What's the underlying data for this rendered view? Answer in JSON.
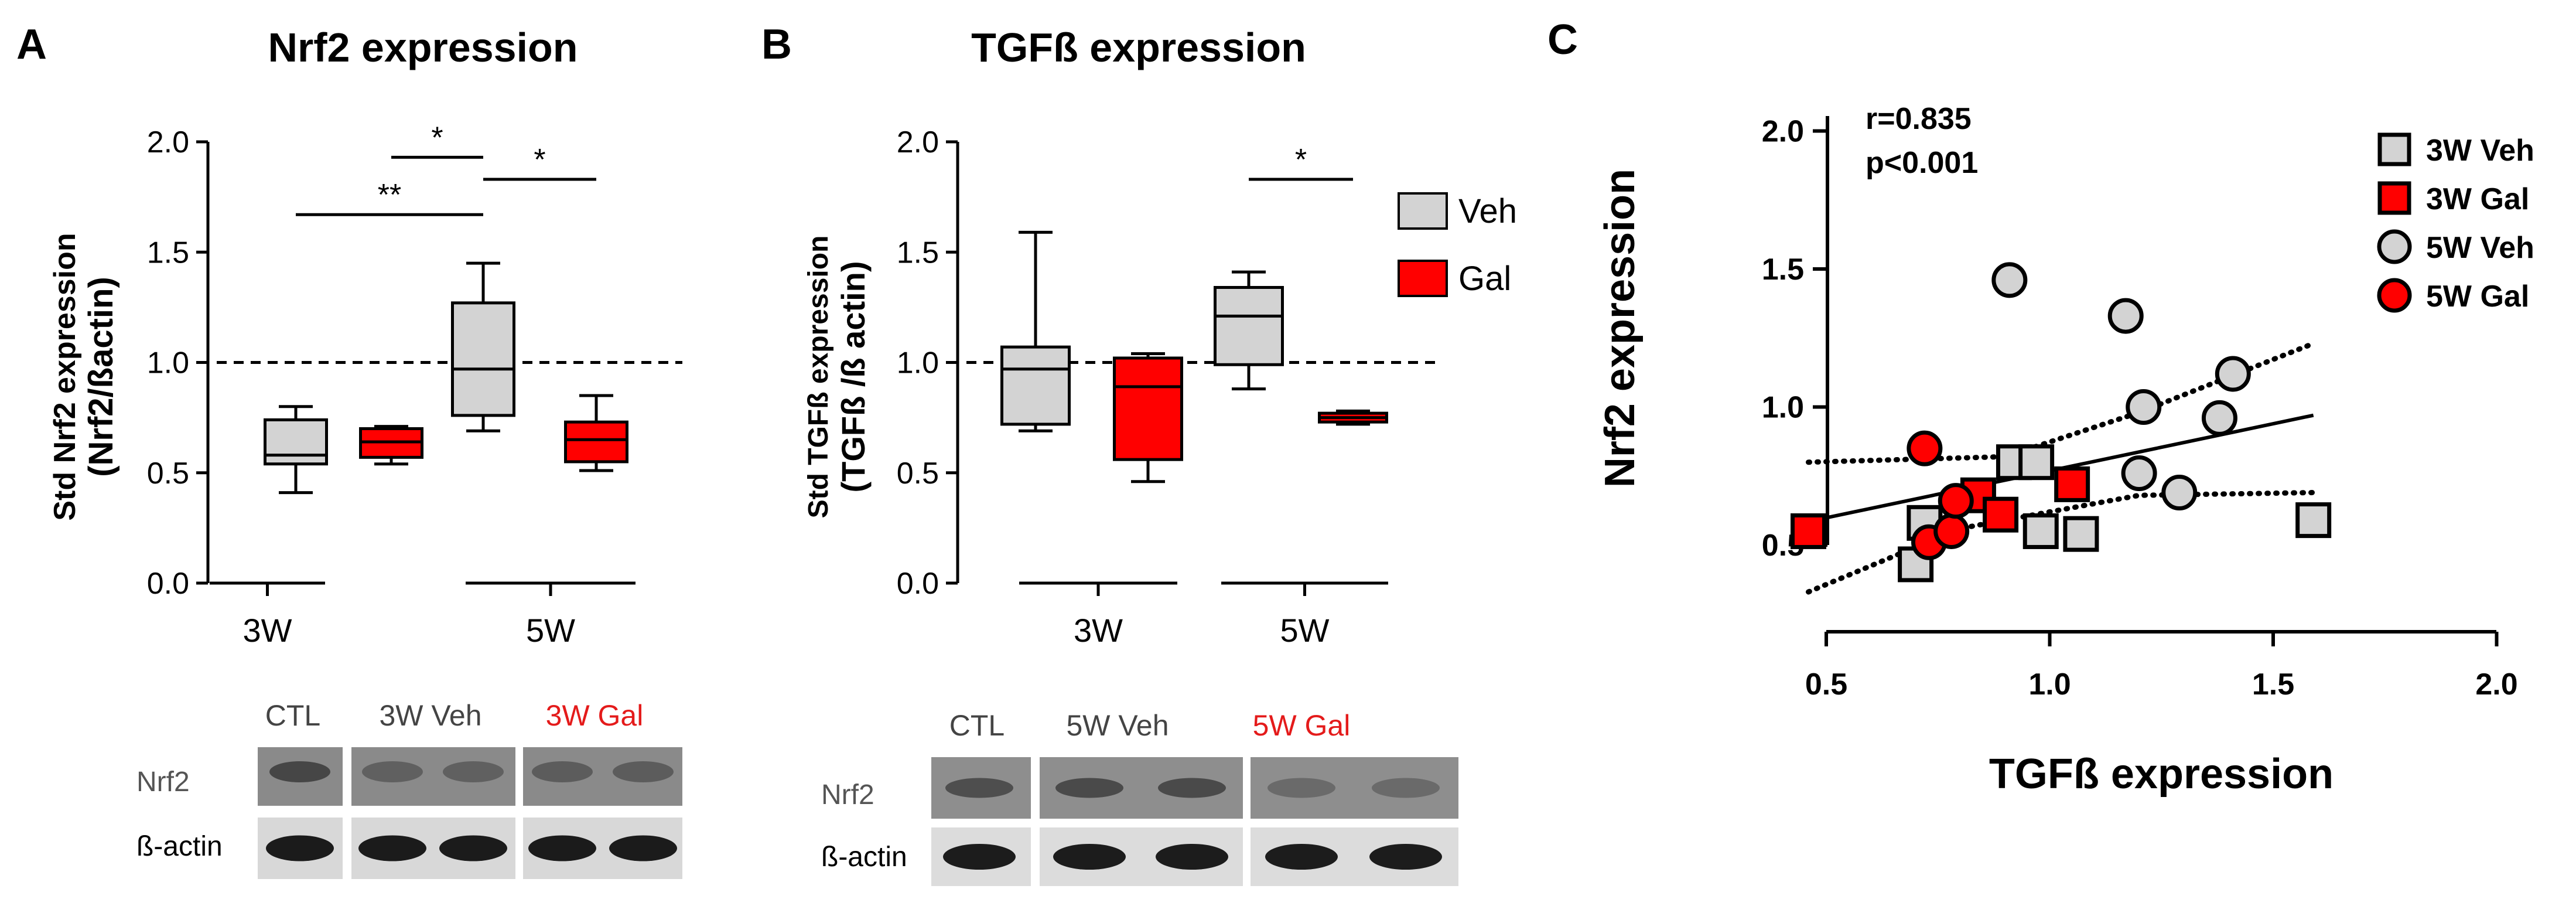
{
  "panels": {
    "A": {
      "letter": "A",
      "title": "Nrf2 expression",
      "ylabel_line1": "Std Nrf2  expression",
      "ylabel_line2": "(Nrf2/ßactin)"
    },
    "B": {
      "letter": "B",
      "title": "TGFß expression",
      "ylabel_line1": "Std TGFß  expression",
      "ylabel_line2": "(TGFß /ß actin)"
    },
    "C": {
      "letter": "C"
    }
  },
  "colors": {
    "veh": "#d3d3d3",
    "gal": "#ff0000",
    "black": "#000000",
    "blot_bg": "#707070"
  },
  "blot_A": {
    "lane_labels": [
      "CTL",
      "3W Veh",
      "3W Gal"
    ],
    "lane_colors": [
      "#444444",
      "#444444",
      "#e41b1b"
    ],
    "rows": [
      "Nrf2",
      "ß-actin"
    ]
  },
  "blot_B": {
    "lane_labels": [
      "CTL",
      "5W Veh",
      "5W Gal"
    ],
    "lane_colors": [
      "#444444",
      "#444444",
      "#e41b1b"
    ],
    "rows": [
      "Nrf2",
      "ß-actin"
    ]
  },
  "chart_data": [
    {
      "panel": "A",
      "type": "box",
      "title": "Nrf2 expression",
      "ylabel": "Std Nrf2  expression (Nrf2/ßactin)",
      "ylim": [
        0,
        2.0
      ],
      "yticks": [
        "0.0",
        "0.5",
        "1.0",
        "1.5",
        "2.0"
      ],
      "categories": [
        "3W",
        "5W"
      ],
      "reference_line": 1.0,
      "series": [
        {
          "name": "Veh",
          "boxes": [
            {
              "min": 0.41,
              "q1": 0.54,
              "median": 0.58,
              "q3": 0.74,
              "max": 0.8
            },
            {
              "min": 0.69,
              "q1": 0.76,
              "median": 0.97,
              "q3": 1.27,
              "max": 1.45
            }
          ]
        },
        {
          "name": "Gal",
          "boxes": [
            {
              "min": 0.54,
              "q1": 0.57,
              "median": 0.64,
              "q3": 0.7,
              "max": 0.71
            },
            {
              "min": 0.51,
              "q1": 0.55,
              "median": 0.65,
              "q3": 0.73,
              "max": 0.85
            }
          ]
        }
      ],
      "significance": [
        {
          "label": "**",
          "from": "3W Veh",
          "to": "5W Veh",
          "y": 1.67
        },
        {
          "label": "*",
          "from": "3W Gal",
          "to": "5W Veh",
          "y": 1.93
        },
        {
          "label": "*",
          "from": "5W Veh",
          "to": "5W Gal",
          "y": 1.83
        }
      ]
    },
    {
      "panel": "B",
      "type": "box",
      "title": "TGFß expression",
      "ylabel": "Std TGFß  expression (TGFß /ß actin)",
      "ylim": [
        0,
        2.0
      ],
      "yticks": [
        "0.0",
        "0.5",
        "1.0",
        "1.5",
        "2.0"
      ],
      "categories": [
        "3W",
        "5W"
      ],
      "reference_line": 1.0,
      "legend": [
        "Veh",
        "Gal"
      ],
      "series": [
        {
          "name": "Veh",
          "boxes": [
            {
              "min": 0.69,
              "q1": 0.72,
              "median": 0.97,
              "q3": 1.07,
              "max": 1.59
            },
            {
              "min": 0.88,
              "q1": 0.99,
              "median": 1.21,
              "q3": 1.34,
              "max": 1.41
            }
          ]
        },
        {
          "name": "Gal",
          "boxes": [
            {
              "min": 0.46,
              "q1": 0.56,
              "median": 0.89,
              "q3": 1.02,
              "max": 1.04
            },
            {
              "min": 0.72,
              "q1": 0.73,
              "median": 0.75,
              "q3": 0.77,
              "max": 0.78
            }
          ]
        }
      ],
      "significance": [
        {
          "label": "*",
          "from": "5W Veh",
          "to": "5W Gal",
          "y": 1.83
        }
      ]
    },
    {
      "panel": "C",
      "type": "scatter",
      "xlabel": "TGFß expression",
      "ylabel": "Nrf2 expression",
      "xlim": [
        0.5,
        2.0
      ],
      "ylim": [
        0.5,
        2.0
      ],
      "xticks": [
        "0.5",
        "1.0",
        "1.5",
        "2.0"
      ],
      "yticks": [
        "0.5",
        "1.0",
        "1.5",
        "2.0"
      ],
      "annotation": [
        "r=0.835",
        "p<0.001"
      ],
      "series": [
        {
          "name": "3W Veh",
          "marker": "square",
          "color": "#d3d3d3",
          "x": [
            0.7,
            0.72,
            0.92,
            0.97,
            0.98,
            1.07,
            1.59
          ],
          "y": [
            0.43,
            0.58,
            0.8,
            0.8,
            0.55,
            0.54,
            0.59
          ]
        },
        {
          "name": "3W Gal",
          "marker": "square",
          "color": "#ff0000",
          "x": [
            0.46,
            0.84,
            0.89,
            1.05
          ],
          "y": [
            0.55,
            0.68,
            0.61,
            0.72
          ]
        },
        {
          "name": "5W Veh",
          "marker": "circle",
          "color": "#d3d3d3",
          "x": [
            0.91,
            1.17,
            1.21,
            1.2,
            1.29,
            1.38,
            1.41
          ],
          "y": [
            1.46,
            1.33,
            1.0,
            0.76,
            0.69,
            0.96,
            1.12
          ]
        },
        {
          "name": "5W Gal",
          "marker": "circle",
          "color": "#ff0000",
          "x": [
            0.72,
            0.73,
            0.78,
            0.79
          ],
          "y": [
            0.85,
            0.51,
            0.55,
            0.66
          ]
        }
      ],
      "fit": {
        "from": [
          0.46,
          0.585
        ],
        "to": [
          1.59,
          0.97
        ]
      },
      "ci_upper": [
        [
          0.46,
          0.8
        ],
        [
          0.9,
          0.82
        ],
        [
          1.2,
          0.98
        ],
        [
          1.59,
          1.23
        ]
      ],
      "ci_lower": [
        [
          0.46,
          0.33
        ],
        [
          0.8,
          0.56
        ],
        [
          1.2,
          0.68
        ],
        [
          1.59,
          0.69
        ]
      ]
    }
  ]
}
